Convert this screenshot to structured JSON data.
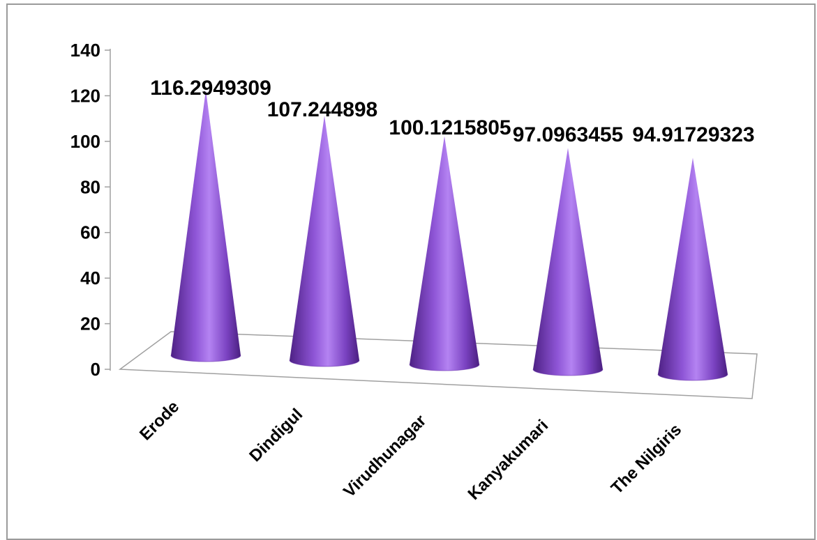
{
  "chart_data": {
    "type": "bar",
    "shape": "cone",
    "three_d": true,
    "categories": [
      "Erode",
      "Dindigul",
      "Virudhunagar",
      "Kanyakumari",
      "The Nilgiris"
    ],
    "values": [
      116.2949309,
      107.244898,
      100.1215805,
      97.0963455,
      94.91729323
    ],
    "value_labels": [
      "116.2949309",
      "107.244898",
      "100.1215805",
      "97.0963455",
      "94.91729323"
    ],
    "ylim": [
      0,
      140
    ],
    "yticks": [
      "0",
      "20",
      "40",
      "60",
      "80",
      "100",
      "120",
      "140"
    ],
    "title": "",
    "xlabel": "",
    "ylabel": "",
    "grid": false,
    "legend": "none",
    "colors": {
      "cone_dark": "#5b2a96",
      "cone_mid": "#8a4fd0",
      "cone_light": "#b27ff0",
      "axis": "#a0a0a0"
    }
  }
}
